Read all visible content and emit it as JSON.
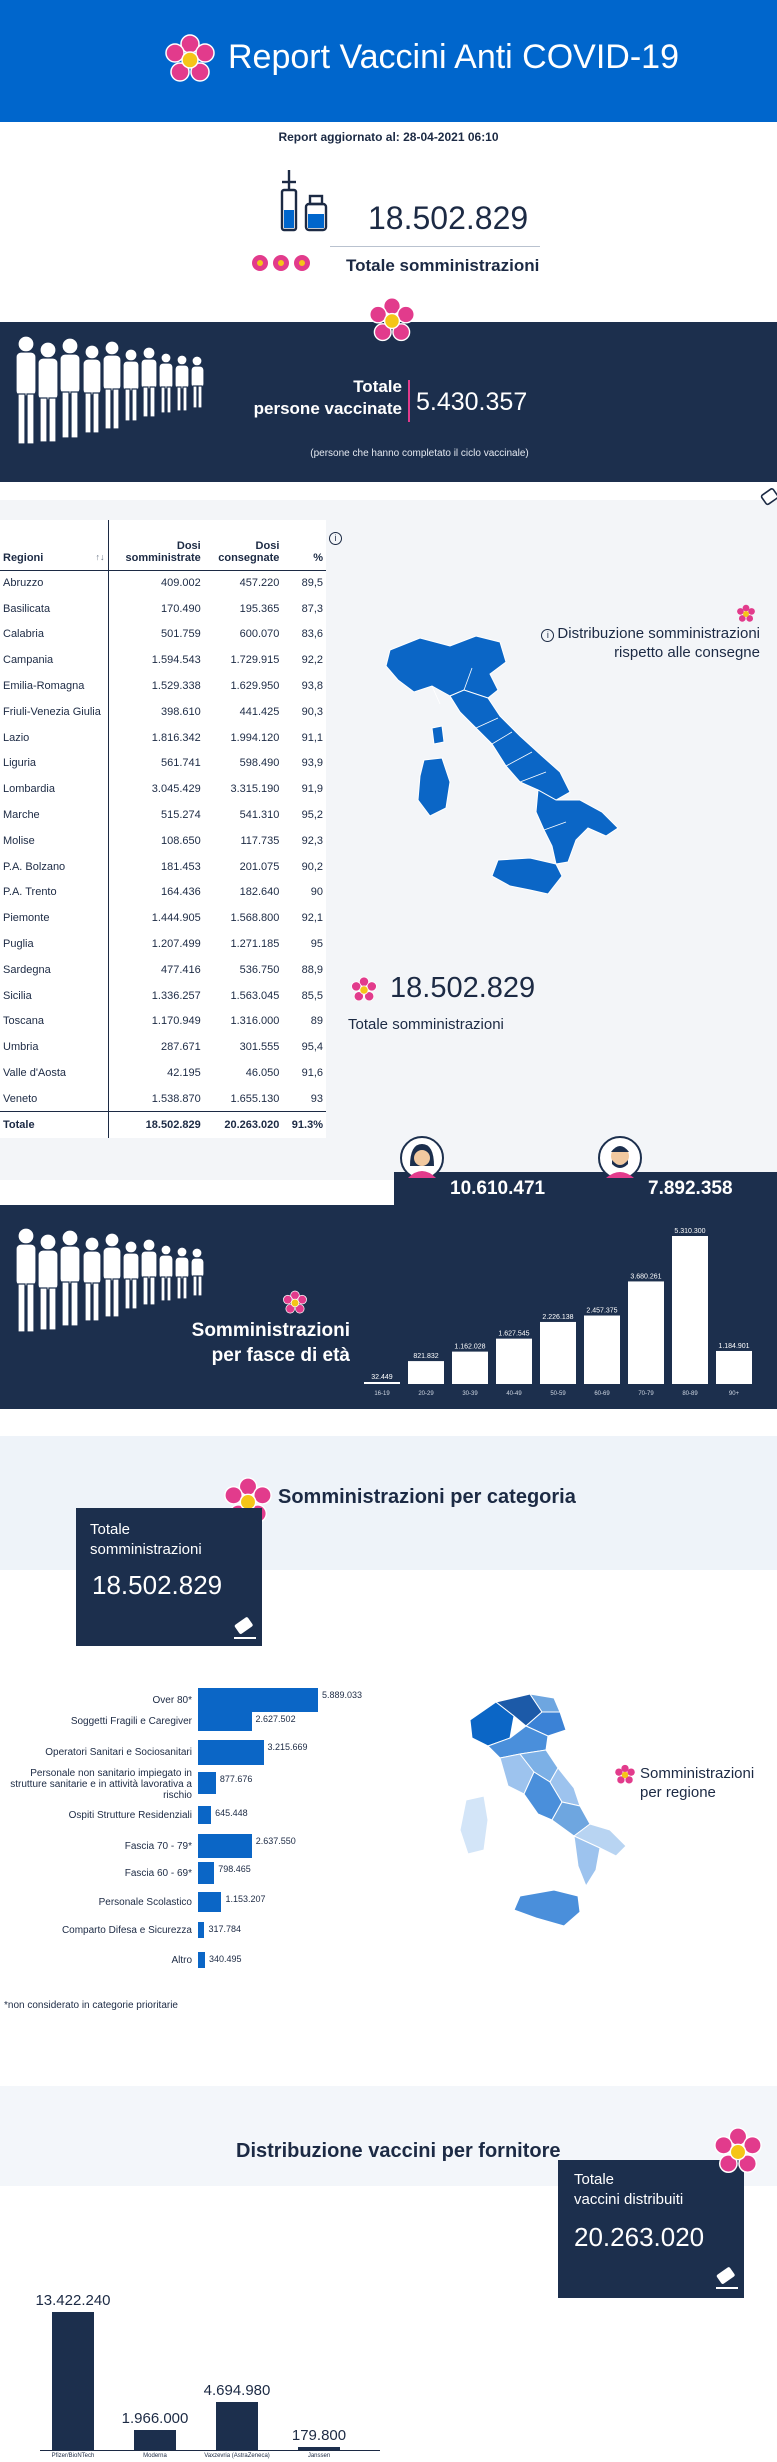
{
  "header": {
    "title": "Report Vaccini Anti COVID-19"
  },
  "updated": "Report aggiornato al: 28-04-2021 06:10",
  "totals": {
    "administrations": "18.502.829",
    "administrations_label": "Totale somministrazioni",
    "vaccinated_label_1": "Totale",
    "vaccinated_label_2": "persone vaccinate",
    "vaccinated": "5.430.357",
    "vaccinated_note": "(persone che hanno completato il ciclo vaccinale)"
  },
  "regions_table": {
    "headers": {
      "region": "Regioni",
      "sort": "↑↓",
      "doses_given_1": "Dosi",
      "doses_given_2": "somministrate",
      "doses_delivered_1": "Dosi",
      "doses_delivered_2": "consegnate",
      "pct": "%"
    },
    "rows": [
      {
        "name": "Abruzzo",
        "given": "409.002",
        "delivered": "457.220",
        "pct": "89,5"
      },
      {
        "name": "Basilicata",
        "given": "170.490",
        "delivered": "195.365",
        "pct": "87,3"
      },
      {
        "name": "Calabria",
        "given": "501.759",
        "delivered": "600.070",
        "pct": "83,6"
      },
      {
        "name": "Campania",
        "given": "1.594.543",
        "delivered": "1.729.915",
        "pct": "92,2"
      },
      {
        "name": "Emilia-Romagna",
        "given": "1.529.338",
        "delivered": "1.629.950",
        "pct": "93,8"
      },
      {
        "name": "Friuli-Venezia Giulia",
        "given": "398.610",
        "delivered": "441.425",
        "pct": "90,3"
      },
      {
        "name": "Lazio",
        "given": "1.816.342",
        "delivered": "1.994.120",
        "pct": "91,1"
      },
      {
        "name": "Liguria",
        "given": "561.741",
        "delivered": "598.490",
        "pct": "93,9"
      },
      {
        "name": "Lombardia",
        "given": "3.045.429",
        "delivered": "3.315.190",
        "pct": "91,9"
      },
      {
        "name": "Marche",
        "given": "515.274",
        "delivered": "541.310",
        "pct": "95,2"
      },
      {
        "name": "Molise",
        "given": "108.650",
        "delivered": "117.735",
        "pct": "92,3"
      },
      {
        "name": "P.A. Bolzano",
        "given": "181.453",
        "delivered": "201.075",
        "pct": "90,2"
      },
      {
        "name": "P.A. Trento",
        "given": "164.436",
        "delivered": "182.640",
        "pct": "90"
      },
      {
        "name": "Piemonte",
        "given": "1.444.905",
        "delivered": "1.568.800",
        "pct": "92,1"
      },
      {
        "name": "Puglia",
        "given": "1.207.499",
        "delivered": "1.271.185",
        "pct": "95"
      },
      {
        "name": "Sardegna",
        "given": "477.416",
        "delivered": "536.750",
        "pct": "88,9"
      },
      {
        "name": "Sicilia",
        "given": "1.336.257",
        "delivered": "1.563.045",
        "pct": "85,5"
      },
      {
        "name": "Toscana",
        "given": "1.170.949",
        "delivered": "1.316.000",
        "pct": "89"
      },
      {
        "name": "Umbria",
        "given": "287.671",
        "delivered": "301.555",
        "pct": "95,4"
      },
      {
        "name": "Valle d'Aosta",
        "given": "42.195",
        "delivered": "46.050",
        "pct": "91,6"
      },
      {
        "name": "Veneto",
        "given": "1.538.870",
        "delivered": "1.655.130",
        "pct": "93"
      }
    ],
    "total": {
      "name": "Totale",
      "given": "18.502.829",
      "delivered": "20.263.020",
      "pct": "91.3%"
    }
  },
  "map_delivery": {
    "title_1": "Distribuzione somministrazioni",
    "title_2": "rispetto alle consegne",
    "total": "18.502.829",
    "total_label": "Totale somministrazioni"
  },
  "gender": {
    "female": "10.610.471",
    "male": "7.892.358"
  },
  "age_section": {
    "label_1": "Somministrazioni",
    "label_2": "per fasce di età"
  },
  "chart_data": [
    {
      "type": "bar",
      "categories": [
        "16-19",
        "20-29",
        "30-39",
        "40-49",
        "50-59",
        "60-69",
        "70-79",
        "80-89",
        "90+"
      ],
      "values": [
        32449,
        821832,
        1162028,
        1627545,
        2226138,
        2457375,
        3680261,
        5310300,
        1184901
      ],
      "labels": [
        "32.449",
        "821.832",
        "1.162.028",
        "1.627.545",
        "2.226.138",
        "2.457.375",
        "3.680.261",
        "5.310.300",
        "1.184.901"
      ],
      "ylim": [
        0,
        5310300
      ]
    },
    {
      "type": "bar",
      "orientation": "horizontal",
      "categories": [
        "Over 80*",
        "Soggetti Fragili e Caregiver",
        "Operatori Sanitari e Sociosanitari",
        "Personale non sanitario impiegato in strutture sanitarie e in attività lavorativa a rischio",
        "Ospiti Strutture Residenziali",
        "Fascia 70 - 79*",
        "Fascia 60 - 69*",
        "Personale Scolastico",
        "Comparto Difesa e Sicurezza",
        "Altro"
      ],
      "values": [
        5889033,
        2627502,
        3215669,
        877676,
        645448,
        2637550,
        798465,
        1153207,
        317784,
        340495
      ],
      "labels": [
        "5.889.033",
        "2.627.502",
        "3.215.669",
        "877.676",
        "645.448",
        "2.637.550",
        "798.465",
        "1.153.207",
        "317.784",
        "340.495"
      ]
    },
    {
      "type": "bar",
      "categories": [
        "Pfizer/BioNTech",
        "Moderna",
        "Vaxzevria (AstraZeneca)",
        "Janssen"
      ],
      "values": [
        13422240,
        1966000,
        4694980,
        179800
      ],
      "labels": [
        "13.422.240",
        "1.966.000",
        "4.694.980",
        "179.800"
      ]
    }
  ],
  "category_section": {
    "title": "Somministrazioni per categoria",
    "box_label_1": "Totale",
    "box_label_2": "somministrazioni",
    "box_value": "18.502.829",
    "note": "*non considerato in categorie prioritarie",
    "map_title_1": "Somministrazioni",
    "map_title_2": "per regione"
  },
  "supplier_section": {
    "title": "Distribuzione vaccini per fornitore",
    "box_label_1": "Totale",
    "box_label_2": "vaccini distribuiti",
    "box_value": "20.263.020"
  },
  "colors": {
    "header_blue": "#0066cc",
    "navy": "#1c2f4d",
    "accent_pink": "#e23b8c",
    "bar_blue": "#0b66c6"
  }
}
